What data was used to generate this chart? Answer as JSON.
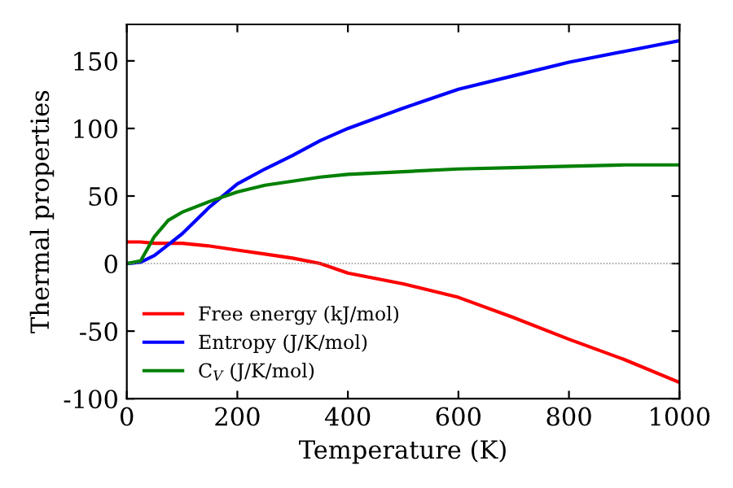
{
  "chart_data": {
    "type": "line",
    "xlabel": "Temperature (K)",
    "ylabel": "Thermal properties",
    "xlim": [
      0,
      1000
    ],
    "xticks": [
      0,
      200,
      400,
      600,
      800,
      1000
    ],
    "ylim": [
      -100,
      177
    ],
    "yticks": [
      -100,
      -50,
      0,
      50,
      100,
      150
    ],
    "x": [
      0,
      25,
      50,
      75,
      100,
      150,
      200,
      250,
      300,
      350,
      400,
      500,
      600,
      700,
      800,
      900,
      1000
    ],
    "series": [
      {
        "name": "Free energy (kJ/mol)",
        "color": "#ff0000",
        "values": [
          16,
          16,
          15,
          15,
          15,
          13,
          10,
          7,
          4,
          0,
          -7,
          -15,
          -25,
          -40,
          -56,
          -71,
          -88
        ]
      },
      {
        "name": "Entropy (J/K/mol)",
        "color": "#0000ff",
        "values": [
          0,
          1,
          6,
          14,
          22,
          42,
          59,
          70,
          80,
          91,
          100,
          115,
          129,
          139,
          149,
          157,
          165
        ]
      },
      {
        "name": "C$_{V}$ (J/K/mol)",
        "color": "#008000",
        "values": [
          0,
          2,
          20,
          32,
          38,
          46,
          53,
          58,
          61,
          64,
          66,
          68,
          70,
          71,
          72,
          73,
          73
        ]
      }
    ],
    "ref_lines": [
      {
        "axis": "y",
        "value": 0,
        "color": "#808080",
        "line_style": "dotted"
      }
    ],
    "legend": "bottom left",
    "grid": false
  }
}
